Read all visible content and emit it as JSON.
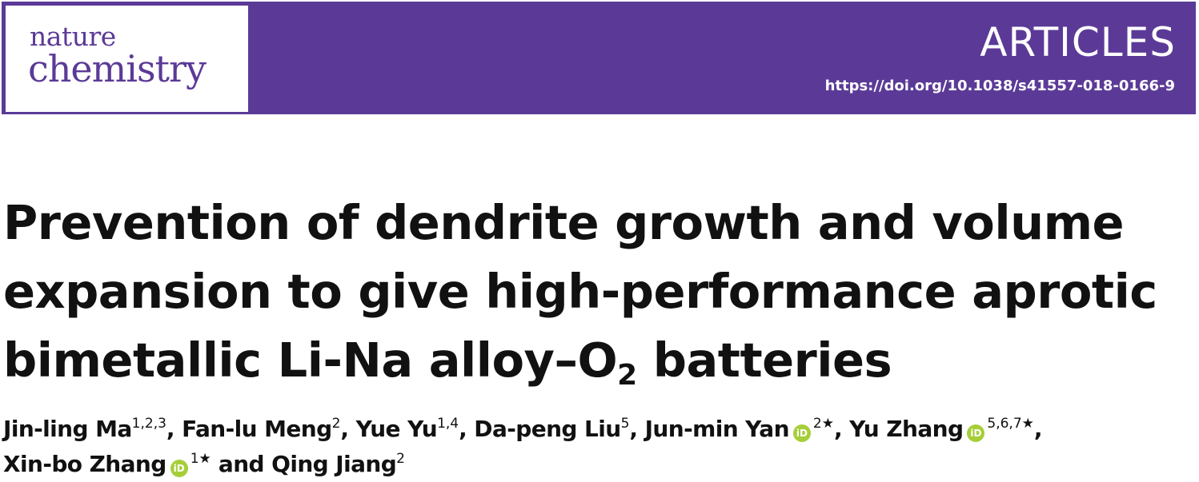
{
  "journal": {
    "logo_top": "nature",
    "logo_bottom": "chemistry",
    "section": "ARTICLES",
    "doi": "https://doi.org/10.1038/s41557-018-0166-9",
    "colors": {
      "brand": "#5b3a97",
      "orcid": "#a6ce39"
    }
  },
  "article": {
    "title_lines": [
      "Prevention of dendrite growth and volume",
      "expansion to give high-performance aprotic",
      "bimetallic Li-Na alloy–O"
    ],
    "title_sub": "2",
    "title_end": " batteries"
  },
  "authors": [
    {
      "name": "Jin-ling Ma",
      "aff": "1,2,3",
      "sep": ", "
    },
    {
      "name": "Fan-lu Meng",
      "aff": "2",
      "sep": ", "
    },
    {
      "name": "Yue Yu",
      "aff": "1,4",
      "sep": ", "
    },
    {
      "name": "Da-peng Liu",
      "aff": "5",
      "sep": ", "
    },
    {
      "name": "Jun-min Yan",
      "aff": "2★",
      "orcid": "iD",
      "sep": ", "
    },
    {
      "name": "Yu Zhang",
      "aff": "5,6,7★",
      "orcid": "iD",
      "sep": ","
    },
    {
      "name": "Xin-bo Zhang",
      "aff": "1★",
      "orcid": "iD",
      "sep": " and "
    },
    {
      "name": "Qing Jiang",
      "aff": "2",
      "sep": ""
    }
  ]
}
